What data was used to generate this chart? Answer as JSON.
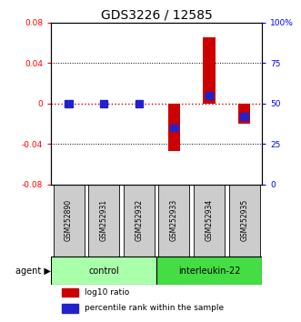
{
  "title": "GDS3226 / 12585",
  "samples": [
    "GSM252890",
    "GSM252931",
    "GSM252932",
    "GSM252933",
    "GSM252934",
    "GSM252935"
  ],
  "groups": [
    "control",
    "control",
    "control",
    "interleukin-22",
    "interleukin-22",
    "interleukin-22"
  ],
  "log10_ratio": [
    0.0,
    0.0,
    0.0,
    -0.047,
    0.065,
    -0.02
  ],
  "percentile_rank": [
    50,
    50,
    50,
    35,
    55,
    42
  ],
  "ylim_left": [
    -0.08,
    0.08
  ],
  "ylim_right": [
    0,
    100
  ],
  "yticks_left": [
    -0.08,
    -0.04,
    0,
    0.04,
    0.08
  ],
  "yticks_right": [
    0,
    25,
    50,
    75,
    100
  ],
  "bar_color": "#CC0000",
  "percentile_color": "#2222CC",
  "zero_line_color": "#CC0000",
  "grid_color": "#000000",
  "background_color": "#ffffff",
  "control_color": "#aaffaa",
  "interleukin_color": "#44dd44",
  "sample_bg_color": "#cccccc",
  "title_fontsize": 10,
  "bar_width": 0.35
}
